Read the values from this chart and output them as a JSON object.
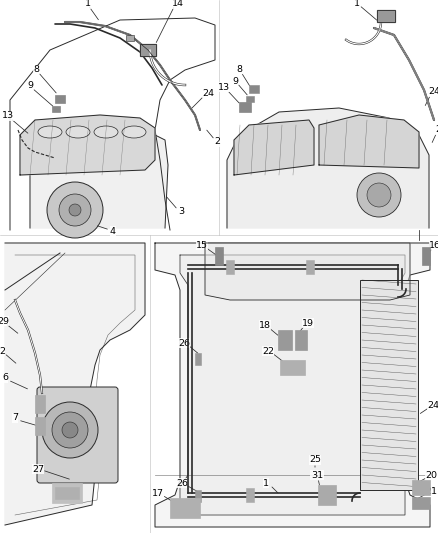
{
  "background_color": "#ffffff",
  "line_color": "#2a2a2a",
  "light_gray": "#e8e8e8",
  "mid_gray": "#cccccc",
  "dark_gray": "#999999",
  "label_fontsize": 6.8,
  "leader_lw": 0.55,
  "structure_lw": 0.7,
  "hose_lw": 1.2,
  "panel_divider_lw": 0.4,
  "panel_divider_color": "#bbbbbb"
}
